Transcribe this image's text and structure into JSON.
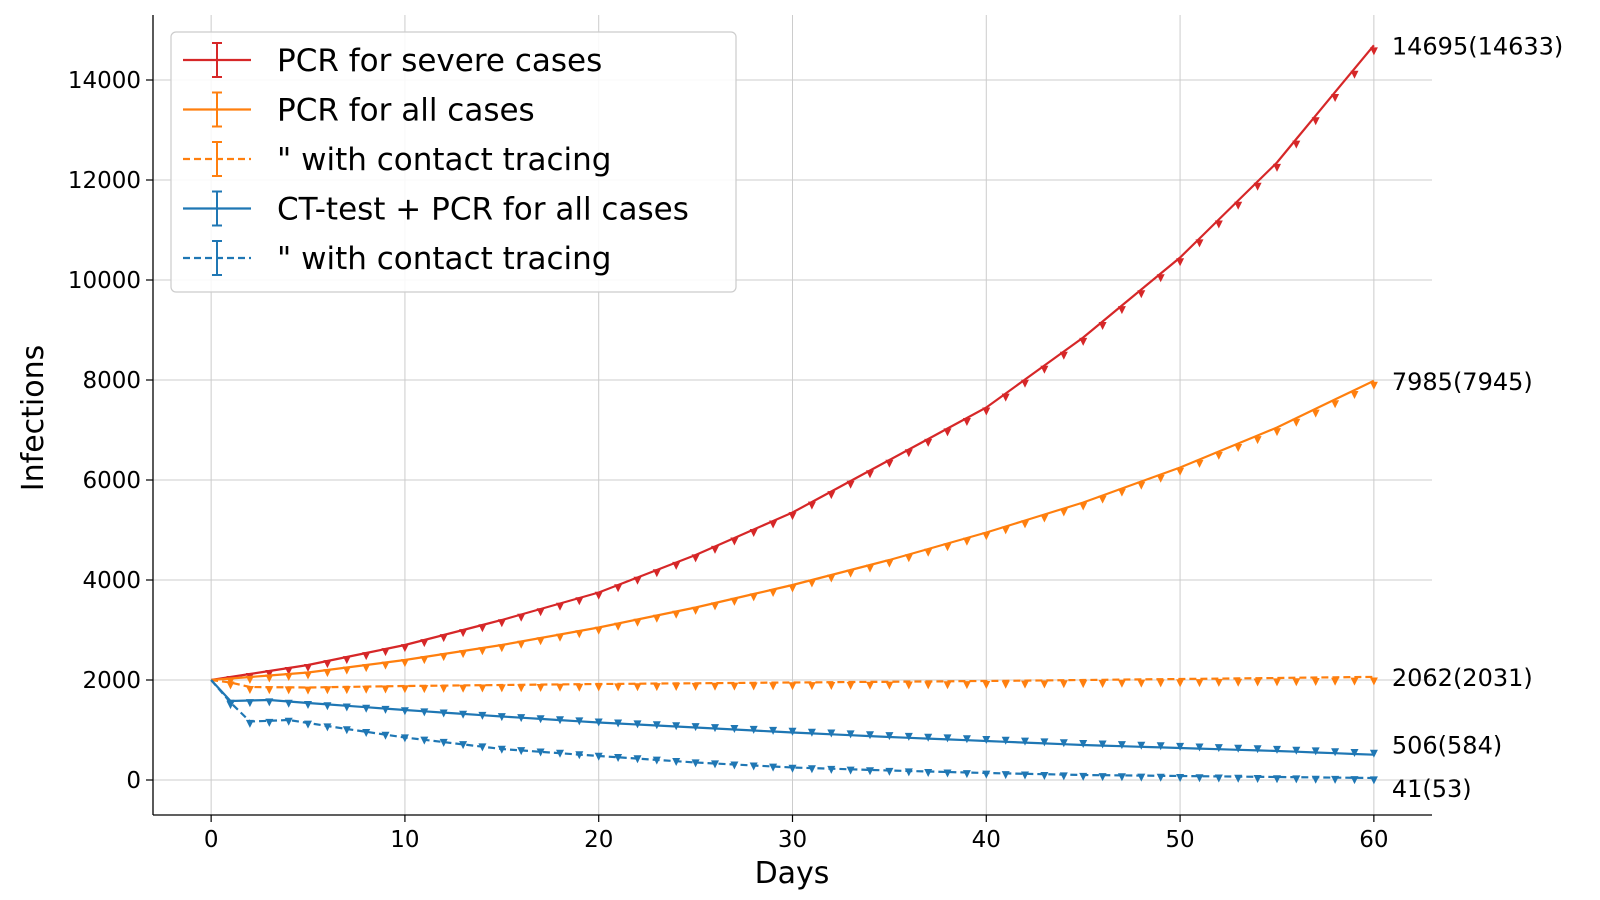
{
  "chart_data": {
    "type": "line",
    "xlabel": "Days",
    "ylabel": "Infections",
    "xlim": [
      -3,
      63
    ],
    "ylim": [
      -700,
      15300
    ],
    "xticks": [
      0,
      10,
      20,
      30,
      40,
      50,
      60
    ],
    "yticks": [
      0,
      2000,
      4000,
      6000,
      8000,
      10000,
      12000,
      14000
    ],
    "grid": true,
    "legend_position": "top-left",
    "colors": {
      "red": "#d62728",
      "orange": "#ff7f0e",
      "blue": "#1f77b4"
    },
    "series": [
      {
        "name": "PCR for severe cases",
        "color": "#d62728",
        "dash": false,
        "start": 2000,
        "end": 14695,
        "end_marker": 14633,
        "x": [
          0,
          5,
          10,
          15,
          20,
          25,
          30,
          35,
          40,
          45,
          50,
          55,
          60
        ],
        "y": [
          2000,
          2300,
          2700,
          3200,
          3750,
          4500,
          5350,
          6400,
          7450,
          8850,
          10450,
          12350,
          14695
        ],
        "end_label": "14695(14633)"
      },
      {
        "name": "PCR for all cases",
        "color": "#ff7f0e",
        "dash": false,
        "start": 2000,
        "end": 7985,
        "end_marker": 7945,
        "x": [
          0,
          5,
          10,
          15,
          20,
          25,
          30,
          35,
          40,
          45,
          50,
          55,
          60
        ],
        "y": [
          2000,
          2150,
          2400,
          2700,
          3050,
          3450,
          3900,
          4400,
          4950,
          5550,
          6250,
          7050,
          7985
        ],
        "end_label": "7985(7945)"
      },
      {
        "name": "\" with contact tracing",
        "color": "#ff7f0e",
        "dash": true,
        "start": 2000,
        "end": 2062,
        "end_marker": 2031,
        "x": [
          0,
          1,
          2,
          5,
          10,
          20,
          30,
          40,
          50,
          60
        ],
        "y": [
          2000,
          1950,
          1860,
          1850,
          1880,
          1920,
          1950,
          1980,
          2020,
          2062
        ],
        "end_label": "2062(2031)"
      },
      {
        "name": "CT-test + PCR for all cases",
        "color": "#1f77b4",
        "dash": false,
        "start": 2000,
        "end": 506,
        "end_marker": 584,
        "x": [
          0,
          1,
          3,
          5,
          10,
          15,
          20,
          25,
          30,
          35,
          40,
          45,
          50,
          55,
          60
        ],
        "y": [
          2000,
          1580,
          1600,
          1540,
          1400,
          1270,
          1150,
          1050,
          950,
          860,
          780,
          700,
          640,
          580,
          506
        ],
        "end_label": "506(584)"
      },
      {
        "name": "\" with contact tracing",
        "color": "#1f77b4",
        "dash": true,
        "start": 2000,
        "end": 41,
        "end_marker": 53,
        "x": [
          0,
          1,
          2,
          4,
          7,
          10,
          15,
          20,
          25,
          30,
          35,
          40,
          45,
          50,
          55,
          60
        ],
        "y": [
          2000,
          1550,
          1170,
          1200,
          1020,
          850,
          620,
          480,
          350,
          250,
          190,
          140,
          100,
          80,
          60,
          41
        ],
        "end_label": "41(53)"
      }
    ]
  }
}
